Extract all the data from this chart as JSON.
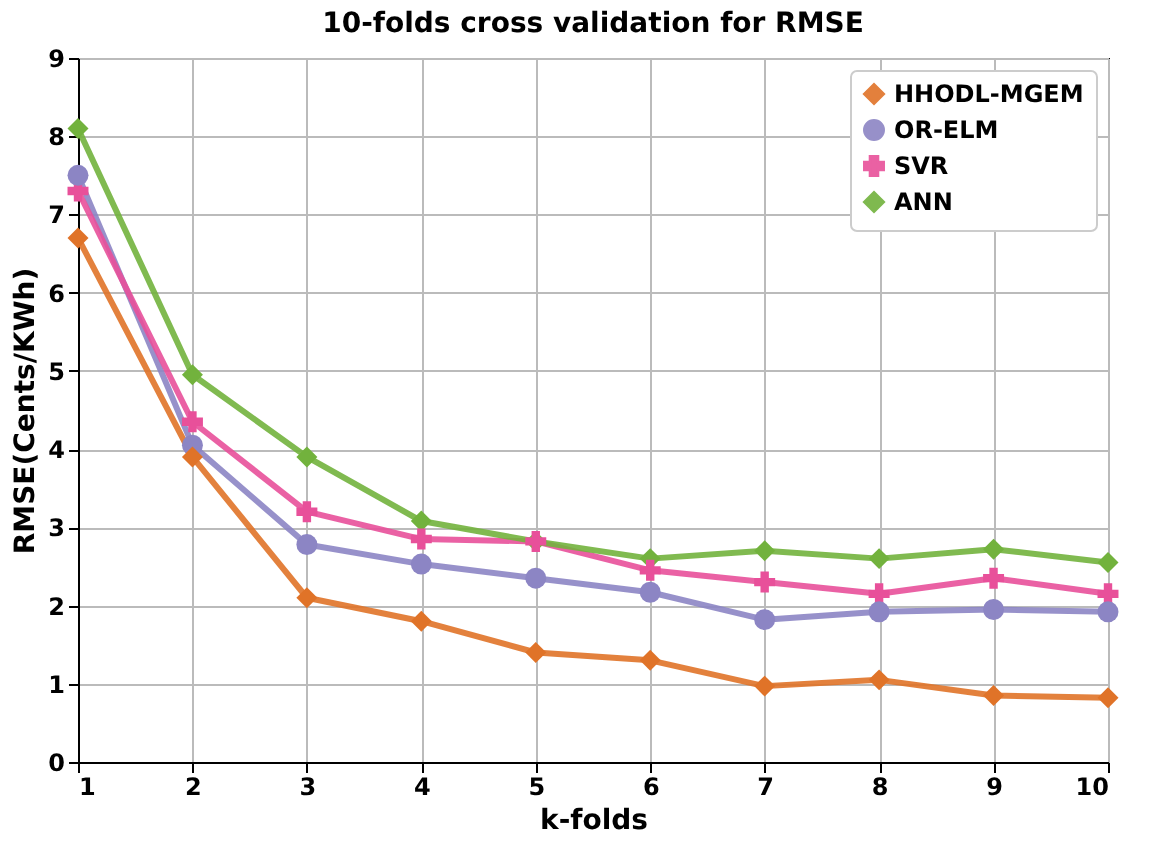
{
  "chart_data": {
    "type": "line",
    "title": "10-folds cross validation for RMSE",
    "xlabel": "k-folds",
    "ylabel": "RMSE(Cents/KWh)",
    "x": [
      1,
      2,
      3,
      4,
      5,
      6,
      7,
      8,
      9,
      10
    ],
    "xlim": [
      1,
      10
    ],
    "xticks": [
      1,
      2,
      3,
      4,
      5,
      6,
      7,
      8,
      9,
      10
    ],
    "ylim": [
      0,
      9
    ],
    "yticks": [
      0,
      1,
      2,
      3,
      4,
      5,
      6,
      7,
      8,
      9
    ],
    "grid": true,
    "legend": "top right",
    "line_style": "solid",
    "series": [
      {
        "name": "HHODL-MGEM",
        "color": "#e07328",
        "marker": "diamond",
        "values": [
          6.7,
          3.9,
          2.1,
          1.8,
          1.4,
          1.3,
          0.97,
          1.05,
          0.85,
          0.82
        ]
      },
      {
        "name": "OR-ELM",
        "color": "#8c85c4",
        "marker": "circle",
        "values": [
          7.5,
          4.05,
          2.78,
          2.53,
          2.35,
          2.17,
          1.82,
          1.92,
          1.95,
          1.92
        ]
      },
      {
        "name": "SVR",
        "color": "#e8509a",
        "marker": "cross",
        "values": [
          7.3,
          4.35,
          3.2,
          2.85,
          2.82,
          2.45,
          2.3,
          2.15,
          2.35,
          2.15
        ]
      },
      {
        "name": "ANN",
        "color": "#72b23d",
        "marker": "diamond",
        "values": [
          8.1,
          4.95,
          3.9,
          3.08,
          2.82,
          2.6,
          2.7,
          2.6,
          2.72,
          2.55
        ]
      }
    ]
  }
}
